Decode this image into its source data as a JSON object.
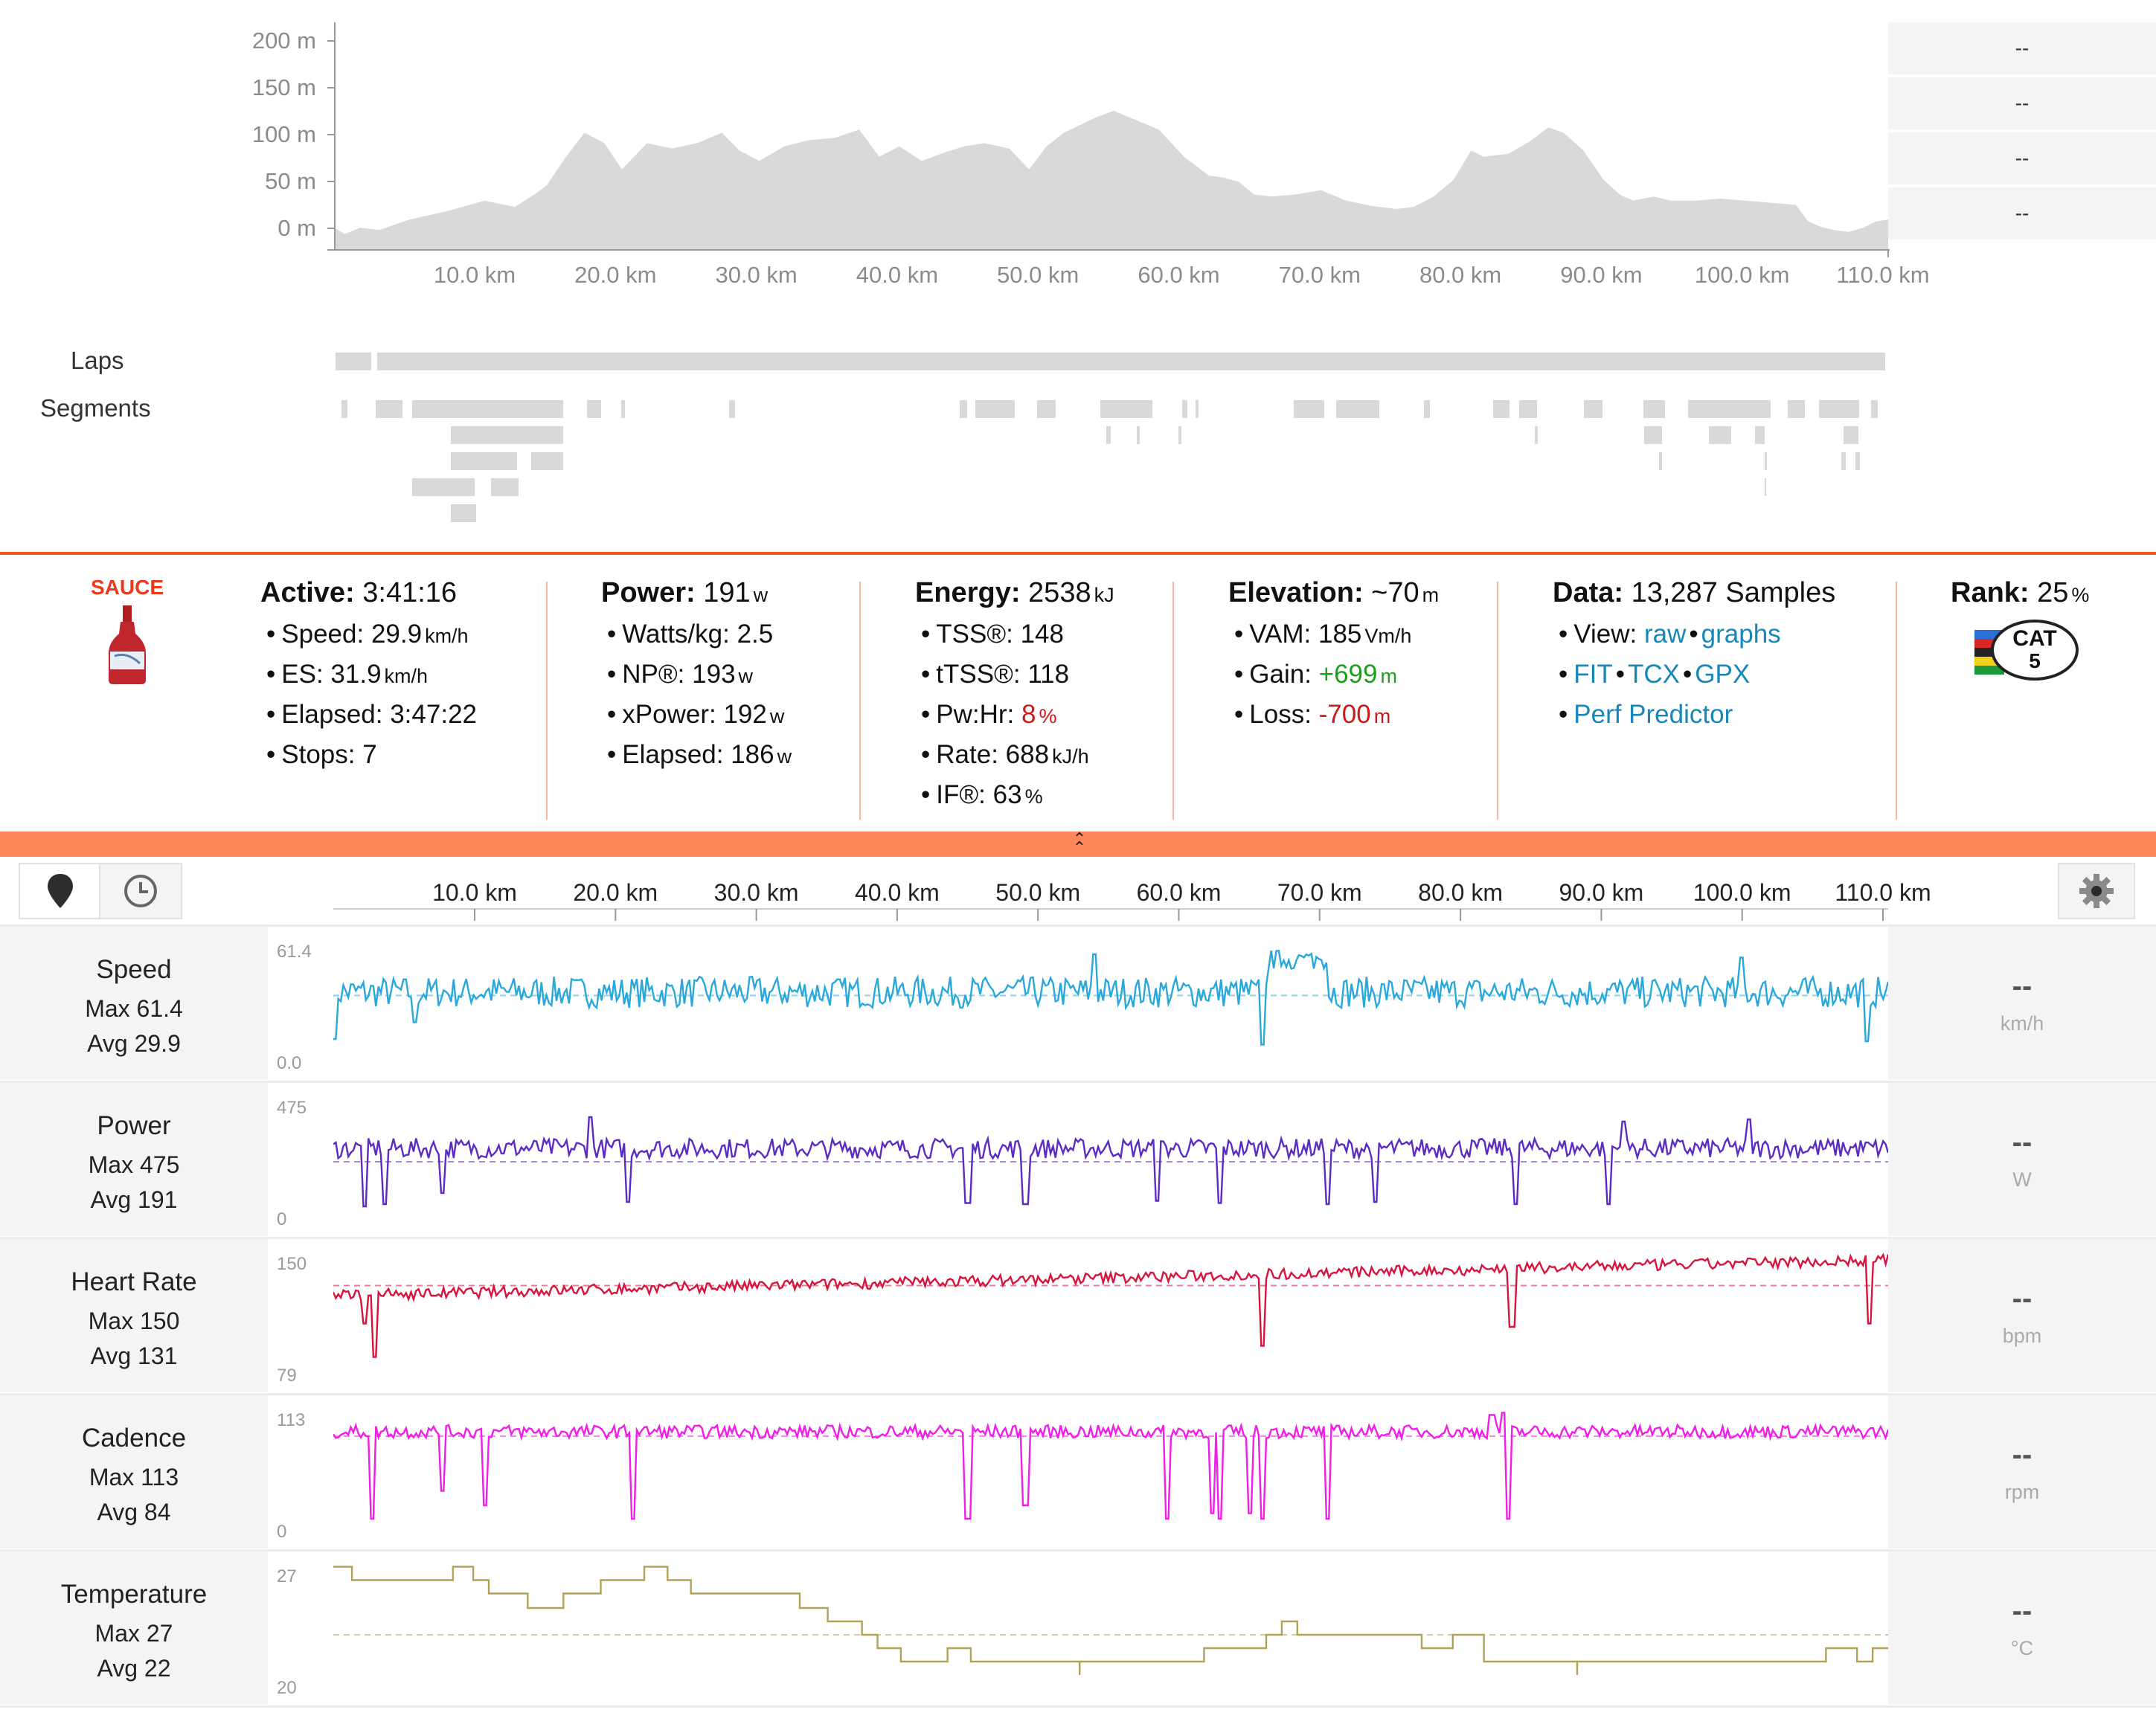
{
  "elevation": {
    "y_ticks": [
      "200 m",
      "150 m",
      "100 m",
      "50 m",
      "0 m"
    ],
    "x_ticks": [
      "10.0 km",
      "20.0 km",
      "30.0 km",
      "40.0 km",
      "50.0 km",
      "60.0 km",
      "70.0 km",
      "80.0 km",
      "90.0 km",
      "100.0 km",
      "110.0 km"
    ],
    "side_values": [
      "--",
      "--",
      "--",
      "--"
    ],
    "fill_color": "#d9d9d9"
  },
  "laps_label": "Laps",
  "segments_label": "Segments",
  "logo": {
    "brand": "SAUCE"
  },
  "stats": {
    "active": {
      "label": "Active:",
      "value": "3:41:16",
      "items": [
        {
          "label": "Speed:",
          "value": "29.9",
          "unit": "km/h"
        },
        {
          "label": "ES:",
          "value": "31.9",
          "unit": "km/h"
        },
        {
          "label": "Elapsed:",
          "value": "3:47:22",
          "unit": ""
        },
        {
          "label": "Stops:",
          "value": "7",
          "unit": ""
        }
      ]
    },
    "power": {
      "label": "Power:",
      "value": "191",
      "unit": "w",
      "items": [
        {
          "label": "Watts/kg:",
          "value": "2.5",
          "unit": ""
        },
        {
          "label": "NP®:",
          "value": "193",
          "unit": "w"
        },
        {
          "label": "xPower:",
          "value": "192",
          "unit": "w"
        },
        {
          "label": "Elapsed:",
          "value": "186",
          "unit": "w"
        }
      ]
    },
    "energy": {
      "label": "Energy:",
      "value": "2538",
      "unit": "kJ",
      "items": [
        {
          "label": "TSS®:",
          "value": "148",
          "unit": ""
        },
        {
          "label": "tTSS®:",
          "value": "118",
          "unit": ""
        },
        {
          "label": "Pw:Hr:",
          "value": "8",
          "unit": "%"
        },
        {
          "label": "Rate:",
          "value": "688",
          "unit": "kJ/h"
        },
        {
          "label": "IF®:",
          "value": "63",
          "unit": "%"
        }
      ]
    },
    "elevation": {
      "label": "Elevation:",
      "value": "~70",
      "unit": "m",
      "items": [
        {
          "label": "VAM:",
          "value": "185",
          "unit": "Vm/h"
        },
        {
          "label": "Gain:",
          "value": "+699",
          "unit": "m"
        },
        {
          "label": "Loss:",
          "value": "-700",
          "unit": "m"
        }
      ]
    },
    "data": {
      "label": "Data:",
      "value": "13,287 Samples",
      "view_label": "View:",
      "raw": "raw",
      "graphs": "graphs",
      "fit": "FIT",
      "tcx": "TCX",
      "gpx": "GPX",
      "perf": "Perf Predictor"
    },
    "rank": {
      "label": "Rank:",
      "value": "25",
      "unit": "%",
      "badge_top": "CAT",
      "badge_num": "5"
    }
  },
  "timeline": {
    "x_ticks": [
      "10.0 km",
      "20.0 km",
      "30.0 km",
      "40.0 km",
      "50.0 km",
      "60.0 km",
      "70.0 km",
      "80.0 km",
      "90.0 km",
      "100.0 km",
      "110.0 km"
    ],
    "tabs": [
      {
        "icon": "map-pin-icon"
      },
      {
        "icon": "clock-icon"
      }
    ],
    "settings_icon": "gear-icon"
  },
  "streams": [
    {
      "id": "speed",
      "title": "Speed",
      "max": "Max 61.4",
      "avg": "Avg 29.9",
      "ymax": "61.4",
      "ymin": "0.0",
      "dash": "--",
      "unit": "km/h",
      "color": "#29a8dc"
    },
    {
      "id": "power",
      "title": "Power",
      "max": "Max 475",
      "avg": "Avg 191",
      "ymax": "475",
      "ymin": "0",
      "dash": "--",
      "unit": "W",
      "color": "#5b2bc4"
    },
    {
      "id": "hr",
      "title": "Heart Rate",
      "max": "Max 150",
      "avg": "Avg 131",
      "ymax": "150",
      "ymin": "79",
      "dash": "--",
      "unit": "bpm",
      "color": "#d8143d"
    },
    {
      "id": "cadence",
      "title": "Cadence",
      "max": "Max 113",
      "avg": "Avg 84",
      "ymax": "113",
      "ymin": "0",
      "dash": "--",
      "unit": "rpm",
      "color": "#f01ee8"
    },
    {
      "id": "temp",
      "title": "Temperature",
      "max": "Max 27",
      "avg": "Avg 22",
      "ymax": "27",
      "ymin": "20",
      "dash": "--",
      "unit": "°C",
      "color": "#b1a257"
    }
  ]
}
